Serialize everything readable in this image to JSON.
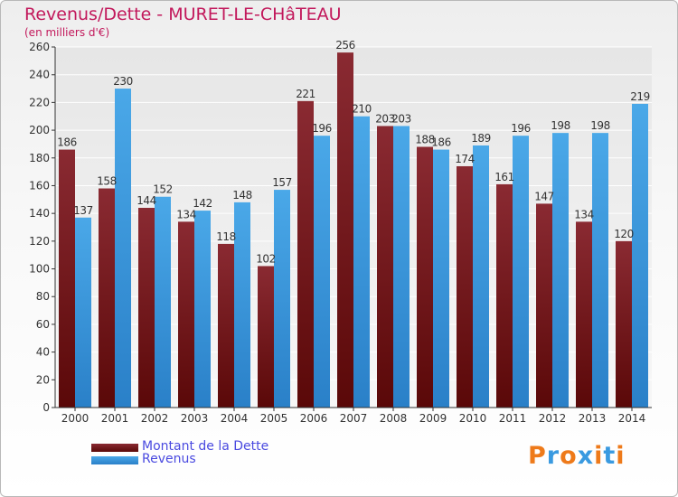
{
  "title": "Revenus/Dette - MURET-LE-CHâTEAU",
  "subtitle": "(en milliers d'€)",
  "logo": {
    "text": "Proxiti",
    "letter_colors": [
      "#ee7a1a",
      "#3a9ae0",
      "#ee7a1a",
      "#3a9ae0",
      "#ee7a1a",
      "#3a9ae0",
      "#ee7a1a"
    ]
  },
  "chart_data": {
    "type": "bar",
    "title": "Revenus/Dette - MURET-LE-CHâTEAU",
    "subtitle": "(en milliers d'€)",
    "xlabel": "",
    "ylabel": "",
    "ylim": [
      0,
      260
    ],
    "yticks": [
      0,
      20,
      40,
      60,
      80,
      100,
      120,
      140,
      160,
      180,
      200,
      220,
      240,
      260
    ],
    "grid": true,
    "legend_position": "bottom-left",
    "categories": [
      "2000",
      "2001",
      "2002",
      "2003",
      "2004",
      "2005",
      "2006",
      "2007",
      "2008",
      "2009",
      "2010",
      "2011",
      "2012",
      "2013",
      "2014"
    ],
    "series": [
      {
        "name": "Montant de la Dette",
        "color": "#6e1a20",
        "values": [
          186,
          158,
          144,
          134,
          118,
          102,
          221,
          256,
          203,
          188,
          174,
          161,
          147,
          134,
          120
        ]
      },
      {
        "name": "Revenus",
        "color": "#3d9be0",
        "values": [
          137,
          230,
          152,
          142,
          148,
          157,
          196,
          210,
          203,
          186,
          189,
          196,
          198,
          198,
          219
        ]
      }
    ]
  }
}
